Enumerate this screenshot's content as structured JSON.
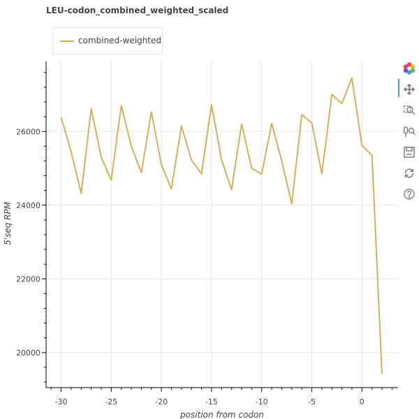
{
  "title": "LEU-codon_combined_weighted_scaled",
  "colors": {
    "line": "#d4b05b",
    "grid": "#e5e5e5",
    "axis": "#000000",
    "text": "#444444",
    "active": "#26aae1"
  },
  "toolbar": {
    "tools": [
      {
        "name": "bokeh-logo-icon"
      },
      {
        "name": "pan-tool-icon"
      },
      {
        "name": "box-zoom-tool-icon"
      },
      {
        "name": "wheel-zoom-tool-icon"
      },
      {
        "name": "save-tool-icon"
      },
      {
        "name": "reset-tool-icon"
      },
      {
        "name": "help-tool-icon"
      }
    ]
  },
  "chart_data": {
    "type": "line",
    "title": "LEU-codon_combined_weighted_scaled",
    "xlabel": "position from codon",
    "ylabel": "5'seq RPM",
    "xlim": [
      -31.5,
      3.6
    ],
    "ylim": [
      19050,
      27900
    ],
    "xticks": [
      -30,
      -25,
      -20,
      -15,
      -10,
      -5,
      0
    ],
    "yticks": [
      20000,
      22000,
      24000,
      26000
    ],
    "grid": true,
    "legend_position": "top-left",
    "series": [
      {
        "name": "combined-weighted",
        "x": [
          -30,
          -29,
          -28,
          -27,
          -26,
          -25,
          -24,
          -23,
          -22,
          -21,
          -20,
          -19,
          -18,
          -17,
          -16,
          -15,
          -14,
          -13,
          -12,
          -11,
          -10,
          -9,
          -8,
          -7,
          -6,
          -5,
          -4,
          -3,
          -2,
          -1,
          0,
          1,
          2
        ],
        "y": [
          26380,
          25450,
          24320,
          26620,
          25300,
          24680,
          26700,
          25600,
          24880,
          26530,
          25100,
          24440,
          26150,
          25220,
          24850,
          26730,
          25230,
          24420,
          26200,
          25000,
          24840,
          26220,
          25200,
          24040,
          26460,
          26230,
          24850,
          27000,
          26760,
          27450,
          25620,
          25350,
          19420
        ]
      }
    ]
  }
}
